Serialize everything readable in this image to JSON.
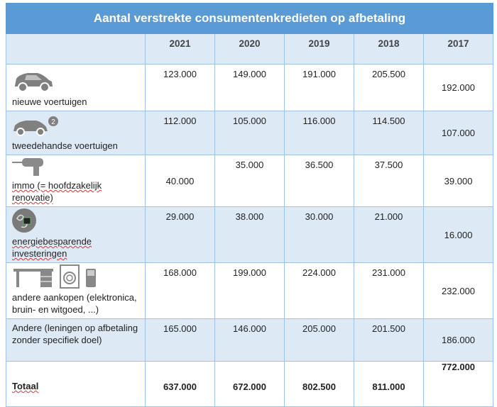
{
  "title": "Aantal verstrekte consumentenkredieten op afbetaling",
  "years": [
    "2021",
    "2020",
    "2019",
    "2018",
    "2017"
  ],
  "rows": [
    {
      "label": "nieuwe voertuigen",
      "icon": "car-icon",
      "values": [
        "123.000",
        "149.000",
        "191.000",
        "205.500",
        "192.000"
      ],
      "align": [
        "t",
        "t",
        "t",
        "t",
        "m"
      ],
      "alt": false,
      "height": 66
    },
    {
      "label": "tweedehandse voertuigen",
      "icon": "used-car-icon",
      "values": [
        "112.000",
        "105.000",
        "116.000",
        "114.500",
        "107.000"
      ],
      "align": [
        "t",
        "t",
        "t",
        "t",
        "m"
      ],
      "alt": true,
      "height": 62
    },
    {
      "label": "immo (= hoofdzakelijk renovatie)",
      "icon": "drill-icon",
      "values": [
        "40.000",
        "35.000",
        "36.500",
        "37.500",
        "39.000"
      ],
      "align": [
        "m",
        "t",
        "t",
        "t",
        "m"
      ],
      "alt": false,
      "height": 68
    },
    {
      "label": "energiebesparende investeringen",
      "icon": "energy-plug-icon",
      "values": [
        "29.000",
        "38.000",
        "30.000",
        "21.000",
        "16.000"
      ],
      "align": [
        "t",
        "t",
        "t",
        "t",
        "m"
      ],
      "alt": true,
      "height": 74
    },
    {
      "label": "andere aankopen (elektronica, bruin- en witgoed, ...)",
      "icon": "appliances-icon",
      "values": [
        "168.000",
        "199.000",
        "224.000",
        "231.000",
        "232.000"
      ],
      "align": [
        "t",
        "t",
        "t",
        "t",
        "m"
      ],
      "alt": false,
      "height": 74
    },
    {
      "label": "Andere (leningen op afbetaling zonder specifiek doel)",
      "icon": "",
      "values": [
        "165.000",
        "146.000",
        "205.000",
        "201.500",
        "186.000"
      ],
      "align": [
        "t",
        "t",
        "t",
        "t",
        "m"
      ],
      "alt": true,
      "height": 60
    }
  ],
  "total": {
    "label": "Totaal",
    "values": [
      "637.000",
      "672.000",
      "802.500",
      "811.000",
      "772.000"
    ],
    "align": [
      "b",
      "b",
      "b",
      "b",
      "t"
    ]
  }
}
